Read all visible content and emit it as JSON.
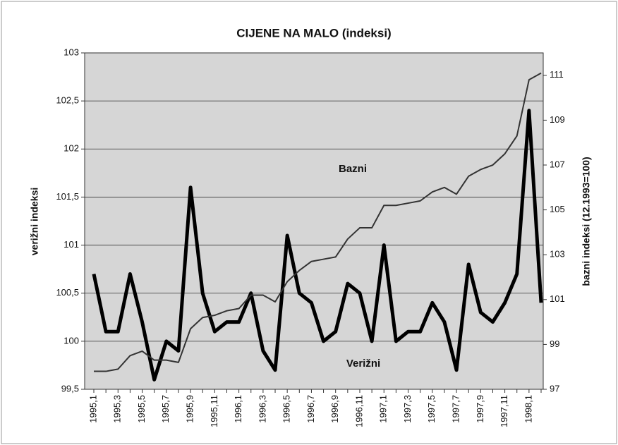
{
  "chart_data": {
    "type": "line",
    "title": "CIJENE NA MALO (indeksi)",
    "y_label": "verižni indeksi",
    "y2_label": "bazni indeksi (12.1993=100)",
    "annotations": [
      "Bazni",
      "Verižni"
    ],
    "categories": [
      "1995,1",
      null,
      "1995,3",
      null,
      "1995,5",
      null,
      "1995,7",
      null,
      "1995,9",
      null,
      "1995,11",
      null,
      "1996,1",
      null,
      "1996,3",
      null,
      "1996,5",
      null,
      "1996,7",
      null,
      "1996,9",
      null,
      "1996,11",
      null,
      "1997,1",
      null,
      "1997,3",
      null,
      "1997,5",
      null,
      "1997,7",
      null,
      "1997,9",
      null,
      "1997,11",
      null,
      "1998,1",
      null
    ],
    "series": [
      {
        "name": "Verižni",
        "color": "#000000",
        "axis": "y",
        "values": [
          100.7,
          100.1,
          100.1,
          100.7,
          100.2,
          99.6,
          100.0,
          99.9,
          101.6,
          100.5,
          100.1,
          100.2,
          100.2,
          100.5,
          99.9,
          99.7,
          101.1,
          100.5,
          100.4,
          100.0,
          100.1,
          100.6,
          100.5,
          100.0,
          101.0,
          100.0,
          100.1,
          100.1,
          100.4,
          100.2,
          99.7,
          100.8,
          100.3,
          100.2,
          100.4,
          100.7,
          102.4,
          100.4
        ]
      },
      {
        "name": "Bazni",
        "color": "#333333",
        "axis": "y2",
        "values": [
          97.8,
          97.8,
          97.9,
          98.5,
          98.7,
          98.3,
          98.3,
          98.2,
          99.7,
          100.2,
          100.3,
          100.5,
          100.6,
          101.2,
          101.2,
          100.9,
          101.8,
          102.3,
          102.7,
          102.8,
          102.9,
          103.7,
          104.2,
          104.2,
          105.2,
          105.2,
          105.3,
          105.4,
          105.8,
          106.0,
          105.7,
          106.5,
          106.8,
          107.0,
          107.5,
          108.3,
          110.8,
          111.1
        ]
      }
    ],
    "ylim": [
      99.5,
      103
    ],
    "yticks": [
      {
        "value": 99.5,
        "label": "99,5"
      },
      100,
      {
        "value": 100.5,
        "label": "100,5"
      },
      101,
      {
        "value": 101.5,
        "label": "101,5"
      },
      102,
      {
        "value": 102.5,
        "label": "102,5"
      },
      103
    ],
    "y2lim": [
      97,
      112
    ],
    "y2ticks": [
      97,
      99,
      101,
      103,
      105,
      107,
      109,
      111
    ],
    "grid": true
  }
}
